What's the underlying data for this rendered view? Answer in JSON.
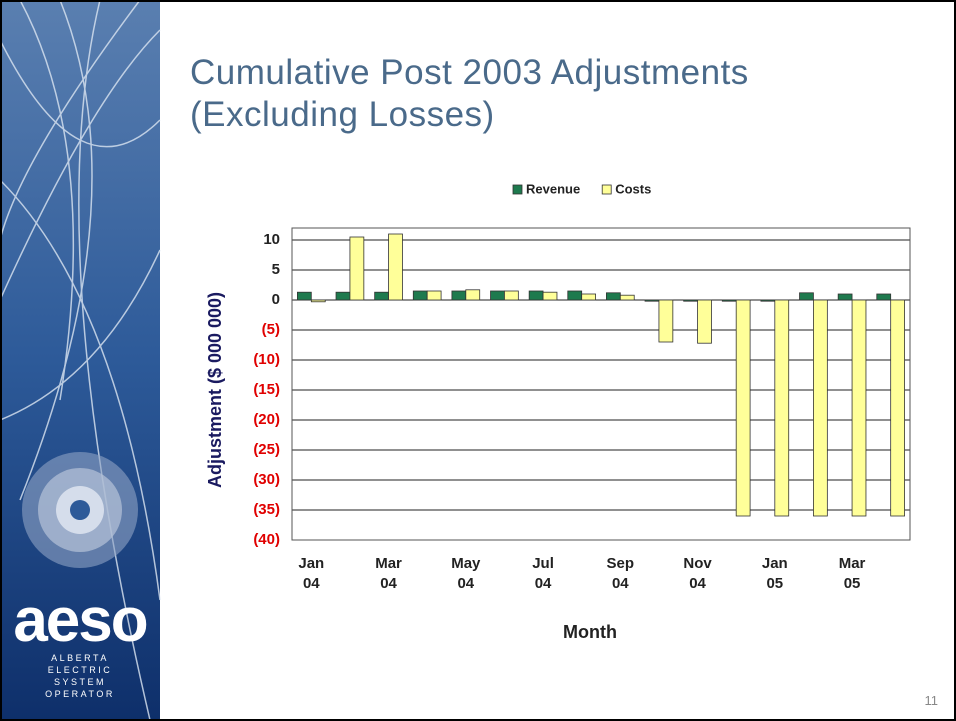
{
  "slide": {
    "title": "Cumulative Post 2003 Adjustments (Excluding Losses)",
    "page_number": "11",
    "logo": "aeso",
    "logo_subtitle": "ALBERTA ELECTRIC SYSTEM OPERATOR"
  },
  "chart_data": {
    "type": "bar",
    "x_label": "Month",
    "y_label": "Adjustment ($ 000 000)",
    "categories": [
      "Jan 04",
      null,
      "Mar 04",
      null,
      "May 04",
      null,
      "Jul 04",
      null,
      "Sep 04",
      null,
      "Nov 04",
      null,
      "Jan 05",
      null,
      "Mar 05",
      null
    ],
    "series": [
      {
        "name": "Revenue",
        "color": "#1e7a4e",
        "values": [
          1.3,
          1.3,
          1.3,
          1.5,
          1.5,
          1.5,
          1.5,
          1.5,
          1.2,
          -0.2,
          -0.2,
          -0.2,
          -0.2,
          1.2,
          1.0,
          1.0
        ]
      },
      {
        "name": "Costs",
        "color": "#ffff99",
        "values": [
          -0.3,
          10.5,
          11,
          1.5,
          1.7,
          1.5,
          1.3,
          1.0,
          0.8,
          -7,
          -7.2,
          -36,
          -36,
          -36,
          -36,
          -36
        ]
      }
    ],
    "ylim": [
      -40,
      12
    ],
    "yticks": [
      10,
      5,
      0,
      {
        "value": -5,
        "label": "(5)"
      },
      {
        "value": -10,
        "label": "(10)"
      },
      {
        "value": -15,
        "label": "(15)"
      },
      {
        "value": -20,
        "label": "(20)"
      },
      {
        "value": -25,
        "label": "(25)"
      },
      {
        "value": -30,
        "label": "(30)"
      },
      {
        "value": -35,
        "label": "(35)"
      },
      {
        "value": -40,
        "label": "(40)"
      }
    ],
    "negative_tick_color": "#e00000",
    "grid": true,
    "legend": "top"
  }
}
